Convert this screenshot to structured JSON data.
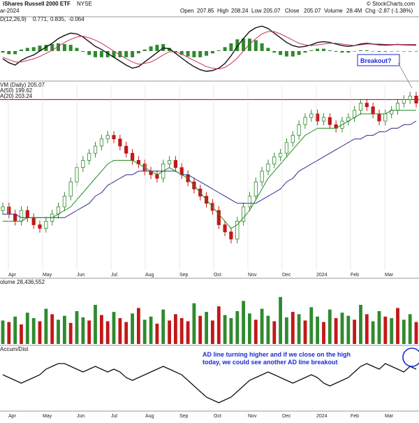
{
  "header": {
    "title": "iShares Russell 2000 ETF",
    "exchange": "NYSE",
    "watermark": "© StockCharts.com",
    "date_fragment": "ar-2024",
    "ohlc": {
      "open_label": "Open",
      "open": "207.85",
      "high_label": "High",
      "high": "208.24",
      "low_label": "Low",
      "low": "205.07",
      "close_label": "Close",
      "close": "205.07",
      "volume_label": "Volume",
      "volume": "28.4M",
      "chg_label": "Chg",
      "chg": "-2.87 (-1.38%)"
    }
  },
  "macd_label": {
    "prefix": "D(12,26,9)",
    "macd": "0.771,",
    "signal": "0.835,",
    "hist": "-0.064"
  },
  "price_labels": {
    "main": "VM (Daily) 205.07",
    "ma50": "A(50) 199.62",
    "ma20": "A(20) 203.24"
  },
  "volume_label": "olume 28,436,552",
  "ad_label": "Accum/Dist",
  "annotations": {
    "breakout": "Breakout?",
    "ad_note_line1": "AD line turning higher and if we close on the high",
    "ad_note_line2": "today, we could see another AD line breakout"
  },
  "colors": {
    "up": "#2f8a2f",
    "down": "#c21818",
    "ma20": "#1e8c1e",
    "ma50": "#2a2a8a",
    "macd": "#111111",
    "signal": "#c8345a",
    "hist": "#2f8a2f",
    "resistance": "#cc1111",
    "annotation": "#1a2bd6",
    "grid": "#d8d8d8"
  },
  "chart_data": {
    "type": "line",
    "x_ticks": [
      "Apr",
      "May",
      "Jun",
      "Jul",
      "Aug",
      "Sep",
      "Oct",
      "Nov",
      "Dec",
      "2024",
      "Feb",
      "Mar"
    ],
    "price": {
      "ylim": [
        158,
        210
      ],
      "resistance": 206,
      "close": [
        176,
        174,
        172,
        175,
        173,
        171,
        170,
        172,
        174,
        176,
        179,
        183,
        187,
        189,
        191,
        193,
        195,
        196,
        195,
        193,
        191,
        189,
        188,
        186,
        185,
        184,
        188,
        189,
        187,
        185,
        183,
        181,
        179,
        177,
        175,
        171,
        169,
        167,
        172,
        176,
        179,
        183,
        186,
        188,
        190,
        191,
        194,
        196,
        199,
        201,
        202,
        200,
        201,
        199,
        198,
        200,
        201,
        203,
        205,
        204,
        202,
        200,
        202,
        203,
        205,
        206,
        207,
        205
      ],
      "ma20": [
        172,
        172,
        172,
        172,
        173,
        173,
        173,
        173,
        173,
        174,
        175,
        176,
        178,
        180,
        182,
        184,
        186,
        188,
        189,
        189,
        189,
        189,
        188,
        187,
        186,
        185,
        186,
        187,
        186,
        185,
        184,
        182,
        180,
        178,
        176,
        174,
        172,
        170,
        171,
        173,
        175,
        178,
        181,
        184,
        186,
        188,
        190,
        192,
        194,
        196,
        197,
        198,
        198,
        198,
        198,
        199,
        200,
        201,
        202,
        202,
        202,
        202,
        202,
        203,
        203,
        203,
        203,
        203
      ],
      "ma50": [
        174,
        174,
        174,
        173,
        173,
        173,
        173,
        173,
        173,
        173,
        173,
        174,
        175,
        176,
        177,
        179,
        180,
        182,
        183,
        184,
        185,
        185,
        186,
        186,
        186,
        186,
        186,
        186,
        186,
        185,
        185,
        184,
        183,
        182,
        181,
        180,
        179,
        178,
        177,
        177,
        177,
        177,
        178,
        179,
        180,
        181,
        183,
        184,
        186,
        187,
        188,
        189,
        190,
        191,
        192,
        193,
        194,
        195,
        195,
        196,
        196,
        197,
        197,
        198,
        198,
        199,
        199,
        200
      ]
    },
    "macd": {
      "ylim": [
        -3.5,
        3.5
      ],
      "macd": [
        -1,
        -1.5,
        -1.8,
        -1.2,
        -0.8,
        -0.5,
        0,
        0.5,
        1,
        1.6,
        2,
        2.3,
        2.2,
        1.8,
        1.2,
        0.6,
        0.2,
        -0.3,
        -0.8,
        -1.3,
        -1.8,
        -2.2,
        -2,
        -1.4,
        -0.8,
        -0.2,
        0.4,
        0.3,
        -0.3,
        -0.9,
        -1.5,
        -2,
        -2.4,
        -2.6,
        -2.5,
        -2.2,
        -1.6,
        -0.6,
        0.6,
        1.6,
        2.5,
        3,
        3.2,
        2.9,
        2.3,
        1.7,
        1.1,
        0.7,
        0.5,
        0.6,
        0.8,
        1.1,
        1.2,
        1.1,
        0.9,
        0.7,
        0.6,
        0.7,
        0.9,
        1,
        0.9,
        0.8,
        0.77,
        0.8,
        0.85,
        0.8,
        0.78,
        0.77
      ],
      "signal": [
        -0.8,
        -1.1,
        -1.4,
        -1.4,
        -1.2,
        -1,
        -0.7,
        -0.3,
        0.1,
        0.6,
        1.1,
        1.5,
        1.8,
        1.9,
        1.7,
        1.4,
        1,
        0.5,
        0,
        -0.5,
        -1,
        -1.4,
        -1.7,
        -1.6,
        -1.4,
        -1,
        -0.5,
        -0.1,
        -0.1,
        -0.4,
        -0.8,
        -1.2,
        -1.6,
        -2,
        -2.2,
        -2.3,
        -2.1,
        -1.6,
        -0.9,
        0,
        0.9,
        1.6,
        2.2,
        2.5,
        2.5,
        2.2,
        1.8,
        1.4,
        1,
        0.8,
        0.7,
        0.8,
        0.9,
        1,
        1,
        0.9,
        0.8,
        0.7,
        0.8,
        0.9,
        0.9,
        0.9,
        0.85,
        0.84,
        0.84,
        0.84,
        0.84,
        0.835
      ]
    },
    "volume": {
      "ylim": [
        0,
        75
      ],
      "values": [
        30,
        28,
        35,
        25,
        40,
        33,
        29,
        45,
        38,
        31,
        36,
        27,
        42,
        34,
        30,
        50,
        37,
        29,
        41,
        33,
        28,
        39,
        46,
        31,
        35,
        26,
        44,
        30,
        38,
        33,
        29,
        52,
        36,
        41,
        30,
        48,
        37,
        33,
        42,
        55,
        39,
        31,
        45,
        36,
        29,
        60,
        34,
        41,
        38,
        30,
        47,
        35,
        28,
        44,
        33,
        40,
        36,
        31,
        50,
        38,
        29,
        42,
        35,
        33,
        46,
        31,
        38,
        28
      ],
      "up": [
        1,
        0,
        1,
        0,
        1,
        1,
        0,
        1,
        0,
        1,
        1,
        0,
        1,
        1,
        0,
        1,
        0,
        0,
        1,
        0,
        0,
        1,
        0,
        1,
        1,
        0,
        1,
        0,
        0,
        0,
        0,
        1,
        0,
        1,
        0,
        0,
        1,
        1,
        1,
        1,
        1,
        0,
        1,
        1,
        0,
        1,
        1,
        0,
        1,
        0,
        1,
        1,
        0,
        1,
        0,
        1,
        1,
        0,
        1,
        0,
        1,
        1,
        0,
        1,
        0,
        1,
        1,
        0
      ]
    },
    "ad": {
      "ylim": [
        -10,
        10
      ],
      "values": [
        2,
        1,
        0,
        -1,
        0,
        1,
        2,
        4,
        5,
        6,
        6,
        5,
        4,
        3,
        4,
        5,
        4,
        3,
        4,
        3,
        1,
        0,
        1,
        2,
        3,
        4,
        5,
        4,
        3,
        2,
        0,
        -2,
        -4,
        -6,
        -7,
        -8,
        -7,
        -6,
        -4,
        -2,
        0,
        1,
        2,
        3,
        2,
        1,
        0,
        -1,
        0,
        1,
        2,
        1,
        -1,
        -2,
        -1,
        0,
        1,
        3,
        5,
        6,
        5,
        4,
        6,
        5,
        4,
        3,
        5,
        4
      ]
    }
  }
}
